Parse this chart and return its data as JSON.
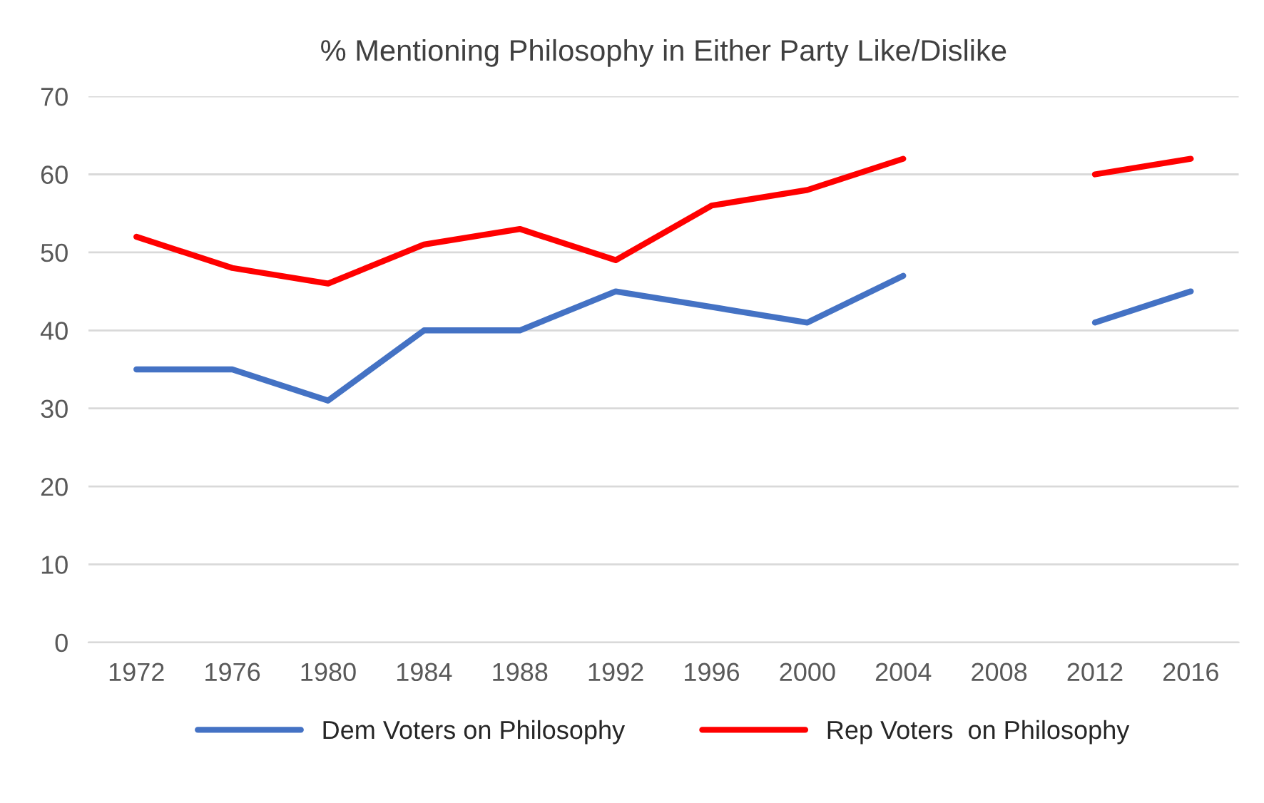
{
  "chart_data": {
    "type": "line",
    "title": "% Mentioning Philosophy in Either Party Like/Dislike",
    "categories": [
      "1972",
      "1976",
      "1980",
      "1984",
      "1988",
      "1992",
      "1996",
      "2000",
      "2004",
      "2008",
      "2012",
      "2016"
    ],
    "series": [
      {
        "name": "Dem Voters on Philosophy",
        "color": "#4472c4",
        "values": [
          35,
          35,
          31,
          40,
          40,
          45,
          43,
          41,
          47,
          null,
          41,
          45
        ]
      },
      {
        "name": "Rep Voters  on Philosophy",
        "color": "#ff0000",
        "values": [
          52,
          48,
          46,
          51,
          53,
          49,
          56,
          58,
          62,
          null,
          60,
          62
        ]
      }
    ],
    "ylim": [
      0,
      70
    ],
    "yticks": [
      0,
      10,
      20,
      30,
      40,
      50,
      60,
      70
    ],
    "grid": "y",
    "legend": "bottom",
    "marker": "none",
    "line_style": "solid"
  }
}
